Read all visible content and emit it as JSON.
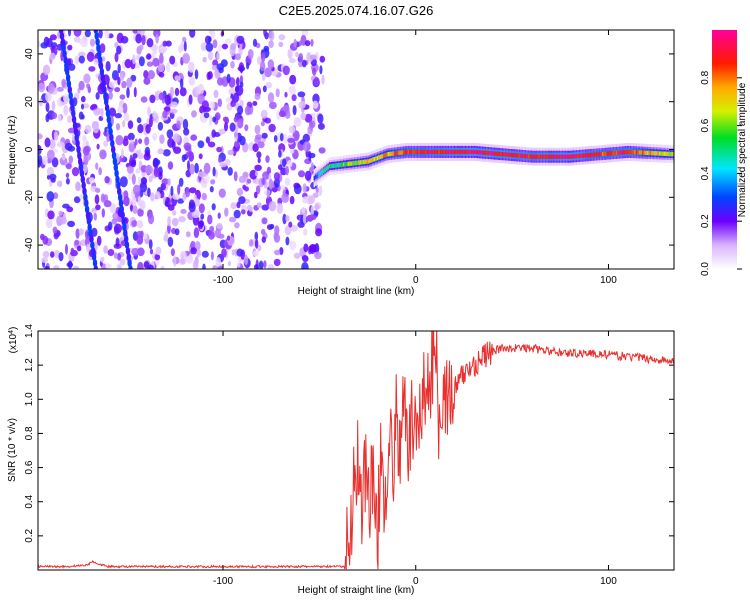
{
  "title": "C2E5.2025.074.16.07.G26",
  "chart_data": [
    {
      "type": "heatmap",
      "xlabel": "Height of straight line (km)",
      "ylabel": "Frequency (Hz)",
      "xlim": [
        -196,
        134
      ],
      "ylim": [
        -50,
        50
      ],
      "xticks": [
        -100,
        0,
        100
      ],
      "xtick_labels": [
        "-100",
        "0",
        "100"
      ],
      "yticks": [
        -40,
        -20,
        0,
        20,
        40
      ],
      "ytick_labels": [
        "-40",
        "-20",
        "0",
        "20",
        "40"
      ],
      "noise_region_x": [
        -196,
        -48
      ],
      "diagonal_streaks": [
        {
          "x_top": -184,
          "x_bottom": -166
        },
        {
          "x_top": -166,
          "x_bottom": -148
        }
      ],
      "signal_line": {
        "x": [
          -53,
          -45,
          -35,
          -25,
          -15,
          -5,
          10,
          30,
          60,
          80,
          95,
          110,
          134
        ],
        "freq": [
          -12,
          -7,
          -6,
          -5,
          -2,
          -1,
          -1,
          -1,
          -3,
          -3,
          -2,
          -1,
          -2
        ],
        "amp": [
          0.3,
          0.5,
          0.6,
          0.7,
          0.75,
          0.85,
          0.9,
          0.95,
          0.9,
          0.95,
          0.85,
          0.9,
          0.6
        ]
      },
      "colorbar": {
        "label": "Normalized spectral amplitude",
        "ticks": [
          0.0,
          0.2,
          0.4,
          0.6,
          0.8
        ],
        "tick_labels": [
          "0.0",
          "0.2",
          "0.4",
          "0.6",
          "0.8"
        ],
        "range": [
          0,
          1
        ]
      },
      "grid": false
    },
    {
      "type": "line",
      "xlabel": "Height of straight line (km)",
      "ylabel": "SNR (10 * v/v)",
      "multiplier_label": "(x10",
      "multiplier_exp": "4",
      "xlim": [
        -196,
        134
      ],
      "ylim": [
        0,
        1.4
      ],
      "xticks": [
        -100,
        0,
        100
      ],
      "xtick_labels": [
        "-100",
        "0",
        "100"
      ],
      "yticks": [
        0.2,
        0.4,
        0.6,
        0.8,
        1.0,
        1.2,
        1.4
      ],
      "ytick_labels": [
        "0.2",
        "0.4",
        "0.6",
        "0.8",
        "1.0",
        "1.2",
        "1.4"
      ],
      "series": [
        {
          "color": "#e8312f",
          "x": [
            -196,
            -180,
            -170,
            -168,
            -160,
            -140,
            -100,
            -60,
            -37,
            -34,
            -32,
            -30,
            -28,
            -26,
            -24,
            -22,
            -20,
            -18,
            -16,
            -14,
            -12,
            -10,
            -8,
            -6,
            -4,
            -2,
            0,
            2,
            4,
            6,
            8,
            10,
            12,
            14,
            16,
            20,
            25,
            30,
            35,
            40,
            45,
            50,
            60,
            70,
            80,
            90,
            100,
            110,
            120,
            134
          ],
          "values": [
            0.02,
            0.02,
            0.03,
            0.05,
            0.02,
            0.02,
            0.02,
            0.02,
            0.02,
            0.2,
            0.55,
            0.65,
            0.4,
            0.6,
            0.45,
            0.55,
            0.1,
            0.75,
            0.4,
            0.85,
            0.55,
            0.9,
            0.7,
            0.95,
            0.75,
            0.85,
            0.8,
            0.95,
            1.05,
            1.0,
            1.15,
            1.4,
            0.9,
            1.1,
            1.0,
            1.05,
            1.15,
            1.2,
            1.25,
            1.28,
            1.3,
            1.3,
            1.3,
            1.28,
            1.27,
            1.27,
            1.26,
            1.25,
            1.24,
            1.22
          ]
        }
      ],
      "grid": false
    }
  ]
}
